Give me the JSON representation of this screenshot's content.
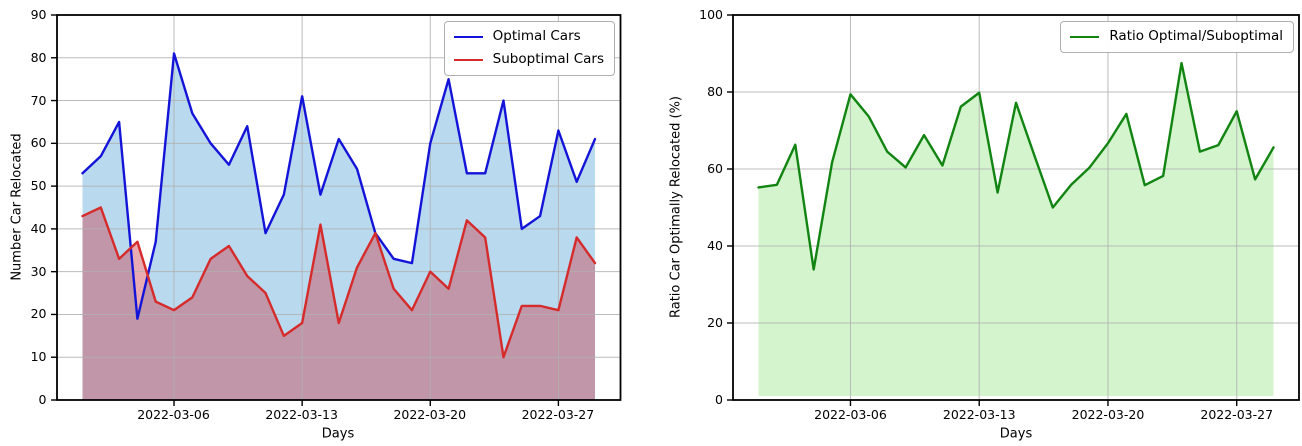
{
  "page": {
    "background": "#ffffff"
  },
  "chart_data": [
    {
      "type": "line",
      "title": "",
      "xlabel": "Days",
      "ylabel": "Number Car Relocated",
      "x": [
        "2022-03-01",
        "2022-03-02",
        "2022-03-03",
        "2022-03-04",
        "2022-03-05",
        "2022-03-06",
        "2022-03-07",
        "2022-03-08",
        "2022-03-09",
        "2022-03-10",
        "2022-03-11",
        "2022-03-12",
        "2022-03-13",
        "2022-03-14",
        "2022-03-15",
        "2022-03-16",
        "2022-03-17",
        "2022-03-18",
        "2022-03-19",
        "2022-03-20",
        "2022-03-21",
        "2022-03-22",
        "2022-03-23",
        "2022-03-24",
        "2022-03-25",
        "2022-03-26",
        "2022-03-27",
        "2022-03-28",
        "2022-03-29"
      ],
      "series": [
        {
          "name": "Optimal Cars",
          "color": "#1414d8",
          "fill_color": "#b9d9ef",
          "values": [
            53,
            57,
            65,
            19,
            37,
            81,
            67,
            60,
            55,
            64,
            39,
            48,
            71,
            48,
            61,
            54,
            39,
            33,
            32,
            60,
            75,
            53,
            53,
            70,
            40,
            43,
            63,
            51,
            61
          ]
        },
        {
          "name": "Suboptimal Cars",
          "color": "#d62b2b",
          "fill_color": "rgba(202,63,78,0.44)",
          "values": [
            43,
            45,
            33,
            37,
            23,
            21,
            24,
            33,
            36,
            29,
            25,
            15,
            18,
            41,
            18,
            31,
            39,
            26,
            21,
            30,
            26,
            42,
            38,
            10,
            22,
            22,
            21,
            38,
            32
          ]
        }
      ],
      "ylim": [
        0,
        90
      ],
      "yticks": [
        0,
        10,
        20,
        30,
        40,
        50,
        60,
        70,
        80,
        90
      ],
      "xtick_labels": [
        "2022-03-06",
        "2022-03-13",
        "2022-03-20",
        "2022-03-27"
      ],
      "xtick_days": [
        6,
        13,
        20,
        27
      ],
      "grid": true,
      "grid_color": "#b0b0b0",
      "legend_position": "upper right",
      "fill_baseline": 0
    },
    {
      "type": "line",
      "title": "",
      "xlabel": "Days",
      "ylabel": "Ratio Car Optimally Relocated (%)",
      "x": [
        "2022-03-01",
        "2022-03-02",
        "2022-03-03",
        "2022-03-04",
        "2022-03-05",
        "2022-03-06",
        "2022-03-07",
        "2022-03-08",
        "2022-03-09",
        "2022-03-10",
        "2022-03-11",
        "2022-03-12",
        "2022-03-13",
        "2022-03-14",
        "2022-03-15",
        "2022-03-16",
        "2022-03-17",
        "2022-03-18",
        "2022-03-19",
        "2022-03-20",
        "2022-03-21",
        "2022-03-22",
        "2022-03-23",
        "2022-03-24",
        "2022-03-25",
        "2022-03-26",
        "2022-03-27",
        "2022-03-28",
        "2022-03-29"
      ],
      "series": [
        {
          "name": "Ratio Optimal/Suboptimal",
          "color": "#128412",
          "fill_color": "#d4f4cd",
          "values": [
            55.2,
            55.9,
            66.3,
            33.9,
            61.7,
            79.4,
            73.6,
            64.5,
            60.4,
            68.8,
            60.9,
            76.2,
            79.8,
            53.9,
            77.2,
            63.5,
            50.0,
            55.9,
            60.4,
            66.7,
            74.3,
            55.8,
            58.2,
            87.5,
            64.5,
            66.2,
            75.0,
            57.3,
            65.6
          ]
        }
      ],
      "ylim": [
        0,
        100
      ],
      "yticks": [
        0,
        20,
        40,
        60,
        80,
        100
      ],
      "xtick_labels": [
        "2022-03-06",
        "2022-03-13",
        "2022-03-20",
        "2022-03-27"
      ],
      "xtick_days": [
        6,
        13,
        20,
        27
      ],
      "grid": true,
      "grid_color": "#b0b0b0",
      "legend_position": "upper right",
      "fill_baseline": 1
    }
  ]
}
